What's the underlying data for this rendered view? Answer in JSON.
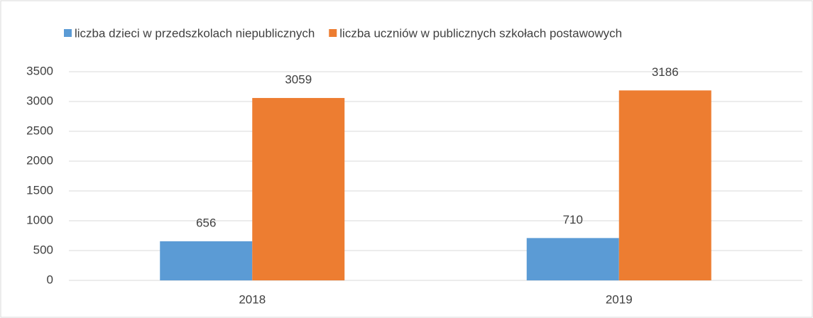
{
  "chart_data": {
    "type": "bar",
    "categories": [
      "2018",
      "2019"
    ],
    "series": [
      {
        "name": "liczba dzieci w przedszkolach niepublicznych",
        "color": "#5b9bd5",
        "values": [
          656,
          710
        ]
      },
      {
        "name": "liczba uczniów w publicznych szkołach postawowych",
        "color": "#ed7d31",
        "values": [
          3059,
          3186
        ]
      }
    ],
    "ylim": [
      0,
      3500
    ],
    "yticks": [
      0,
      500,
      1000,
      1500,
      2000,
      2500,
      3000,
      3500
    ],
    "grid": true,
    "legend": "top",
    "data_labels": true
  }
}
